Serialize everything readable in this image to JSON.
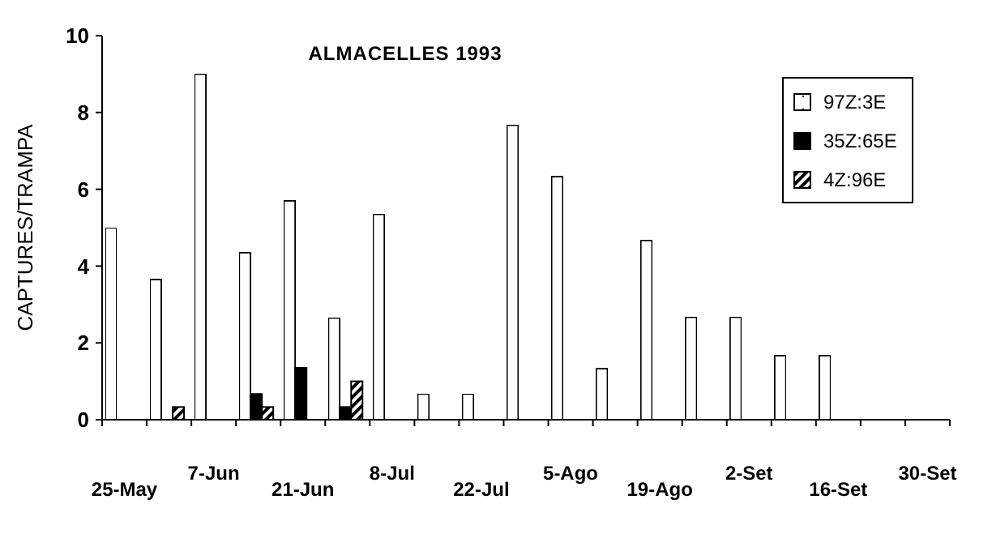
{
  "chart_data": {
    "type": "bar",
    "title": "ALMACELLES 1993",
    "ylabel": "CAPTURES/TRAMPA",
    "categories": [
      "25-May",
      null,
      "7-Jun",
      null,
      "21-Jun",
      null,
      "8-Jul",
      null,
      "22-Jul",
      null,
      "5-Ago",
      null,
      "19-Ago",
      null,
      "2-Set",
      null,
      "16-Set",
      null,
      "30-Set"
    ],
    "series": [
      {
        "name": "97Z:3E",
        "color": "#ffffff",
        "values": [
          5.0,
          3.65,
          9.0,
          4.35,
          5.7,
          2.65,
          5.35,
          0.67,
          0.67,
          7.67,
          6.33,
          1.33,
          4.67,
          2.67,
          2.67,
          1.67,
          1.67,
          null,
          null
        ]
      },
      {
        "name": "35Z:65E",
        "color": "#000000",
        "values": [
          null,
          null,
          null,
          0.67,
          1.35,
          0.33,
          null,
          null,
          null,
          null,
          null,
          null,
          null,
          null,
          null,
          null,
          null,
          null,
          null
        ]
      },
      {
        "name": "4Z:96E",
        "color": "#000000",
        "values": [
          null,
          0.33,
          null,
          0.33,
          null,
          1.0,
          null,
          null,
          null,
          null,
          null,
          null,
          null,
          null,
          null,
          null,
          null,
          null,
          null
        ]
      }
    ],
    "ylim": [
      0,
      10
    ],
    "yticks": [
      0,
      2,
      4,
      6,
      8,
      10
    ],
    "grid": false,
    "legend": "top right"
  }
}
